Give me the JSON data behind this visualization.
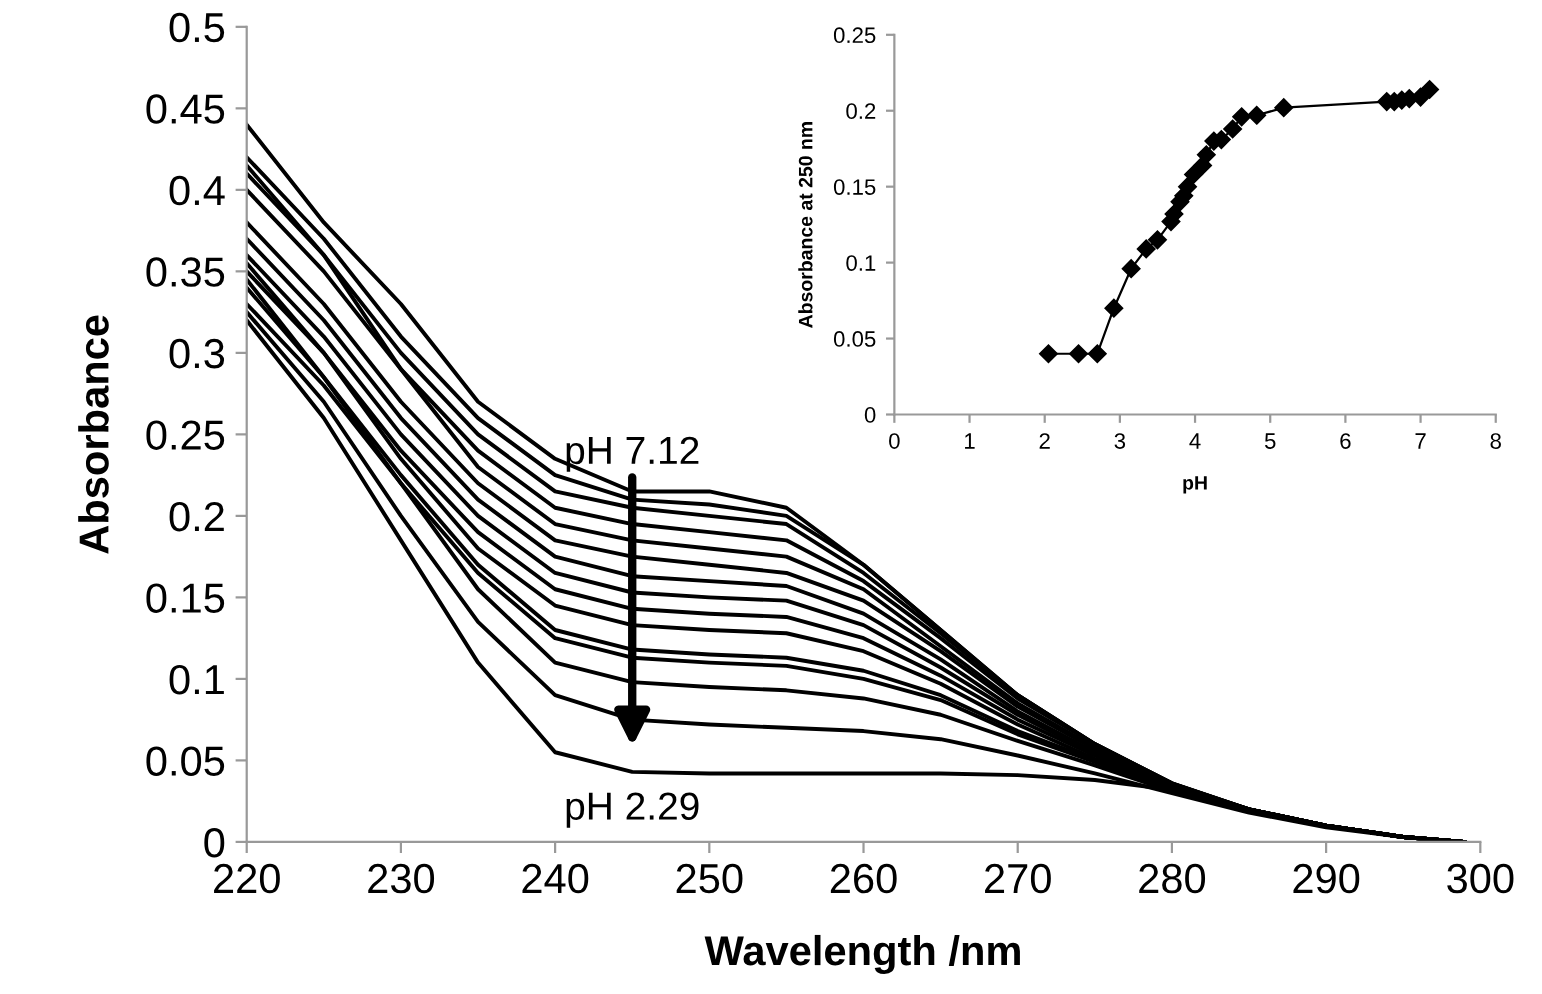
{
  "chart_data": [
    {
      "type": "line",
      "xlabel": "Wavelength /nm",
      "ylabel": "Absorbance",
      "xlim": [
        220,
        300
      ],
      "xticks": [
        220,
        230,
        240,
        250,
        260,
        270,
        280,
        290,
        300
      ],
      "ylim": [
        0,
        0.5
      ],
      "yticks": [
        0,
        0.05,
        0.1,
        0.15,
        0.2,
        0.25,
        0.3,
        0.35,
        0.4,
        0.45,
        0.5
      ],
      "grid": false,
      "legend": false,
      "marker": "none",
      "line_style": "solid",
      "x": [
        220,
        225,
        230,
        235,
        240,
        245,
        250,
        255,
        260,
        265,
        270,
        275,
        280,
        285,
        290,
        295,
        299
      ],
      "annotations": [
        {
          "text": "pH 7.12",
          "x": 245,
          "y": 0.215
        },
        {
          "text": "pH 2.29",
          "x": 245,
          "y": 0.043
        }
      ],
      "series": [
        {
          "color": "#000000",
          "values": [
            0.44,
            0.38,
            0.33,
            0.27,
            0.235,
            0.215,
            0.215,
            0.205,
            0.17,
            0.13,
            0.09,
            0.06,
            0.035,
            0.02,
            0.01,
            0.003,
            0
          ]
        },
        {
          "color": "#000000",
          "values": [
            0.42,
            0.37,
            0.31,
            0.26,
            0.225,
            0.21,
            0.207,
            0.2,
            0.17,
            0.13,
            0.09,
            0.06,
            0.036,
            0.02,
            0.01,
            0.003,
            0
          ]
        },
        {
          "color": "#000000",
          "values": [
            0.41,
            0.36,
            0.3,
            0.25,
            0.215,
            0.205,
            0.2,
            0.195,
            0.165,
            0.128,
            0.09,
            0.06,
            0.036,
            0.02,
            0.01,
            0.003,
            0
          ]
        },
        {
          "color": "#000000",
          "values": [
            0.4,
            0.35,
            0.29,
            0.24,
            0.205,
            0.195,
            0.19,
            0.185,
            0.16,
            0.125,
            0.088,
            0.06,
            0.036,
            0.02,
            0.01,
            0.003,
            0
          ]
        },
        {
          "color": "#000000",
          "values": [
            0.415,
            0.36,
            0.29,
            0.23,
            0.195,
            0.185,
            0.18,
            0.175,
            0.155,
            0.12,
            0.085,
            0.058,
            0.035,
            0.02,
            0.01,
            0.003,
            0
          ]
        },
        {
          "color": "#000000",
          "values": [
            0.38,
            0.33,
            0.27,
            0.22,
            0.185,
            0.175,
            0.17,
            0.165,
            0.148,
            0.117,
            0.083,
            0.057,
            0.035,
            0.02,
            0.01,
            0.003,
            0
          ]
        },
        {
          "color": "#000000",
          "values": [
            0.37,
            0.32,
            0.26,
            0.21,
            0.175,
            0.163,
            0.16,
            0.157,
            0.14,
            0.112,
            0.08,
            0.055,
            0.034,
            0.02,
            0.01,
            0.003,
            0
          ]
        },
        {
          "color": "#000000",
          "values": [
            0.36,
            0.31,
            0.25,
            0.2,
            0.165,
            0.153,
            0.15,
            0.148,
            0.133,
            0.107,
            0.078,
            0.054,
            0.034,
            0.02,
            0.01,
            0.003,
            0
          ]
        },
        {
          "color": "#000000",
          "values": [
            0.35,
            0.3,
            0.24,
            0.19,
            0.155,
            0.143,
            0.14,
            0.138,
            0.125,
            0.102,
            0.075,
            0.053,
            0.033,
            0.02,
            0.01,
            0.003,
            0
          ]
        },
        {
          "color": "#000000",
          "values": [
            0.355,
            0.3,
            0.235,
            0.18,
            0.145,
            0.133,
            0.13,
            0.128,
            0.117,
            0.097,
            0.072,
            0.051,
            0.033,
            0.02,
            0.01,
            0.003,
            0
          ]
        },
        {
          "color": "#000000",
          "values": [
            0.34,
            0.285,
            0.225,
            0.17,
            0.13,
            0.118,
            0.115,
            0.113,
            0.105,
            0.09,
            0.068,
            0.05,
            0.032,
            0.019,
            0.01,
            0.003,
            0
          ]
        },
        {
          "color": "#000000",
          "values": [
            0.33,
            0.28,
            0.22,
            0.165,
            0.125,
            0.113,
            0.11,
            0.108,
            0.1,
            0.087,
            0.066,
            0.049,
            0.032,
            0.019,
            0.01,
            0.003,
            0
          ]
        },
        {
          "color": "#000000",
          "values": [
            0.345,
            0.285,
            0.22,
            0.155,
            0.11,
            0.098,
            0.095,
            0.093,
            0.088,
            0.078,
            0.062,
            0.047,
            0.031,
            0.019,
            0.01,
            0.003,
            0
          ]
        },
        {
          "color": "#000000",
          "values": [
            0.325,
            0.27,
            0.2,
            0.135,
            0.09,
            0.075,
            0.072,
            0.07,
            0.068,
            0.063,
            0.053,
            0.042,
            0.03,
            0.018,
            0.009,
            0.003,
            0
          ]
        },
        {
          "color": "#000000",
          "values": [
            0.32,
            0.26,
            0.185,
            0.11,
            0.055,
            0.043,
            0.042,
            0.042,
            0.042,
            0.042,
            0.041,
            0.038,
            0.032,
            0.02,
            0.01,
            0.003,
            0
          ]
        }
      ]
    },
    {
      "type": "line",
      "xlabel": "pH",
      "ylabel": "Absorbance at 250 nm",
      "xlim": [
        0,
        8
      ],
      "xticks": [
        0,
        1,
        2,
        3,
        4,
        5,
        6,
        7,
        8
      ],
      "ylim": [
        0,
        0.25
      ],
      "yticks": [
        0,
        0.05,
        0.1,
        0.15,
        0.2,
        0.25
      ],
      "grid": false,
      "legend": false,
      "marker": "diamond",
      "line_style": "solid",
      "x": [
        2.05,
        2.45,
        2.7,
        2.92,
        3.15,
        3.35,
        3.5,
        3.68,
        3.72,
        3.8,
        3.85,
        3.9,
        3.98,
        4.1,
        4.15,
        4.25,
        4.35,
        4.5,
        4.62,
        4.82,
        5.18,
        6.55,
        6.65,
        6.75,
        6.85,
        7.0,
        7.12
      ],
      "series": [
        {
          "color": "#000000",
          "values": [
            0.04,
            0.04,
            0.04,
            0.07,
            0.096,
            0.109,
            0.115,
            0.127,
            0.132,
            0.14,
            0.144,
            0.15,
            0.158,
            0.164,
            0.171,
            0.18,
            0.181,
            0.188,
            0.196,
            0.197,
            0.202,
            0.206,
            0.206,
            0.207,
            0.208,
            0.209,
            0.214
          ]
        }
      ]
    }
  ]
}
